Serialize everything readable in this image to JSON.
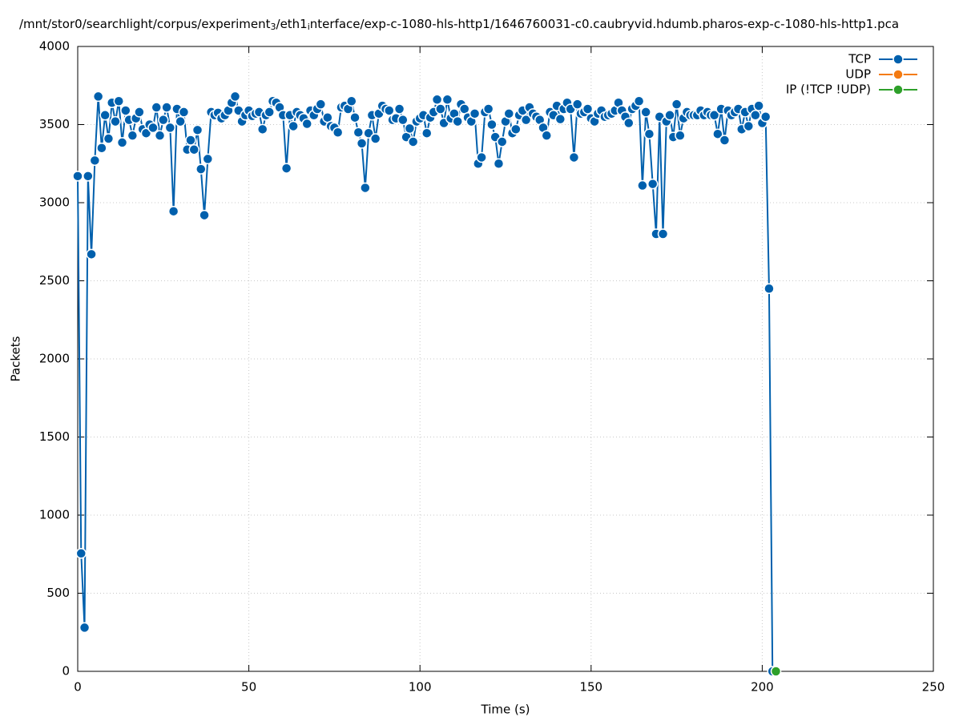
{
  "chart_data": {
    "type": "line",
    "title": [
      "/mnt/stor0/searchlight/corpus/experiment",
      "3",
      "/eth1",
      "i",
      "nterface/exp-c-1080-hls-http1/1646760031-c0.caubryvid.hdumb.pharos-exp-c-1080-hls-http1.pca"
    ],
    "xlabel": "Time (s)",
    "ylabel": "Packets",
    "xlim": [
      0,
      250
    ],
    "xticks": [
      0,
      50,
      100,
      150,
      200,
      250
    ],
    "ylim": [
      0,
      4000
    ],
    "yticks": [
      0,
      500,
      1000,
      1500,
      2000,
      2500,
      3000,
      3500,
      4000
    ],
    "grid": true,
    "legend": "top-right",
    "series": [
      {
        "name": "TCP",
        "color": "#0060ad",
        "x": [
          0,
          1,
          2,
          3,
          4,
          5,
          6,
          7,
          8,
          9,
          10,
          11,
          12,
          13,
          14,
          15,
          16,
          17,
          18,
          19,
          20,
          21,
          22,
          23,
          24,
          25,
          26,
          27,
          28,
          29,
          30,
          31,
          32,
          33,
          34,
          35,
          36,
          37,
          38,
          39,
          40,
          41,
          42,
          43,
          44,
          45,
          46,
          47,
          48,
          49,
          50,
          51,
          52,
          53,
          54,
          55,
          56,
          57,
          58,
          59,
          60,
          61,
          62,
          63,
          64,
          65,
          66,
          67,
          68,
          69,
          70,
          71,
          72,
          73,
          74,
          75,
          76,
          77,
          78,
          79,
          80,
          81,
          82,
          83,
          84,
          85,
          86,
          87,
          88,
          89,
          90,
          91,
          92,
          93,
          94,
          95,
          96,
          97,
          98,
          99,
          100,
          101,
          102,
          103,
          104,
          105,
          106,
          107,
          108,
          109,
          110,
          111,
          112,
          113,
          114,
          115,
          116,
          117,
          118,
          119,
          120,
          121,
          122,
          123,
          124,
          125,
          126,
          127,
          128,
          129,
          130,
          131,
          132,
          133,
          134,
          135,
          136,
          137,
          138,
          139,
          140,
          141,
          142,
          143,
          144,
          145,
          146,
          147,
          148,
          149,
          150,
          151,
          152,
          153,
          154,
          155,
          156,
          157,
          158,
          159,
          160,
          161,
          162,
          163,
          164,
          165,
          166,
          167,
          168,
          169,
          170,
          171,
          172,
          173,
          174,
          175,
          176,
          177,
          178,
          179,
          180,
          181,
          182,
          183,
          184,
          185,
          186,
          187,
          188,
          189,
          190,
          191,
          192,
          193,
          194,
          195,
          196,
          197,
          198,
          199,
          200,
          201,
          202,
          203
        ],
        "values": [
          3170,
          755,
          280,
          3170,
          2670,
          3270,
          3680,
          3350,
          3560,
          3410,
          3640,
          3520,
          3650,
          3385,
          3590,
          3530,
          3430,
          3540,
          3580,
          3470,
          3445,
          3500,
          3480,
          3610,
          3430,
          3530,
          3610,
          3480,
          2945,
          3600,
          3520,
          3580,
          3340,
          3400,
          3340,
          3465,
          3215,
          2920,
          3280,
          3580,
          3560,
          3575,
          3540,
          3560,
          3590,
          3640,
          3680,
          3590,
          3520,
          3560,
          3590,
          3555,
          3570,
          3580,
          3470,
          3560,
          3580,
          3650,
          3640,
          3610,
          3560,
          3220,
          3560,
          3490,
          3580,
          3560,
          3540,
          3505,
          3590,
          3560,
          3600,
          3630,
          3520,
          3545,
          3490,
          3480,
          3450,
          3610,
          3620,
          3600,
          3650,
          3545,
          3450,
          3380,
          3095,
          3445,
          3560,
          3410,
          3570,
          3620,
          3600,
          3590,
          3530,
          3540,
          3600,
          3530,
          3420,
          3475,
          3390,
          3520,
          3540,
          3560,
          3445,
          3545,
          3580,
          3660,
          3600,
          3510,
          3660,
          3540,
          3570,
          3520,
          3630,
          3600,
          3545,
          3520,
          3570,
          3250,
          3290,
          3580,
          3600,
          3500,
          3420,
          3250,
          3390,
          3520,
          3570,
          3445,
          3470,
          3560,
          3590,
          3530,
          3610,
          3570,
          3550,
          3530,
          3480,
          3430,
          3580,
          3560,
          3620,
          3535,
          3600,
          3640,
          3600,
          3290,
          3630,
          3570,
          3580,
          3600,
          3540,
          3520,
          3570,
          3590,
          3550,
          3560,
          3570,
          3590,
          3640,
          3590,
          3550,
          3510,
          3600,
          3620,
          3650,
          3110,
          3580,
          3440,
          3120,
          2800,
          3550,
          2800,
          3520,
          3560,
          3420,
          3630,
          3430,
          3540,
          3580,
          3560,
          3560,
          3560,
          3590,
          3560,
          3580,
          3560,
          3560,
          3440,
          3600,
          3400,
          3590,
          3560,
          3580,
          3600,
          3470,
          3580,
          3490,
          3600,
          3560,
          3620,
          3510,
          3550,
          2450,
          0
        ]
      },
      {
        "name": "UDP",
        "color": "#f47b12",
        "x": [],
        "values": []
      },
      {
        "name": "IP (!TCP  !UDP)",
        "color": "#2ea02a",
        "x": [
          204
        ],
        "values": [
          0
        ]
      }
    ]
  }
}
